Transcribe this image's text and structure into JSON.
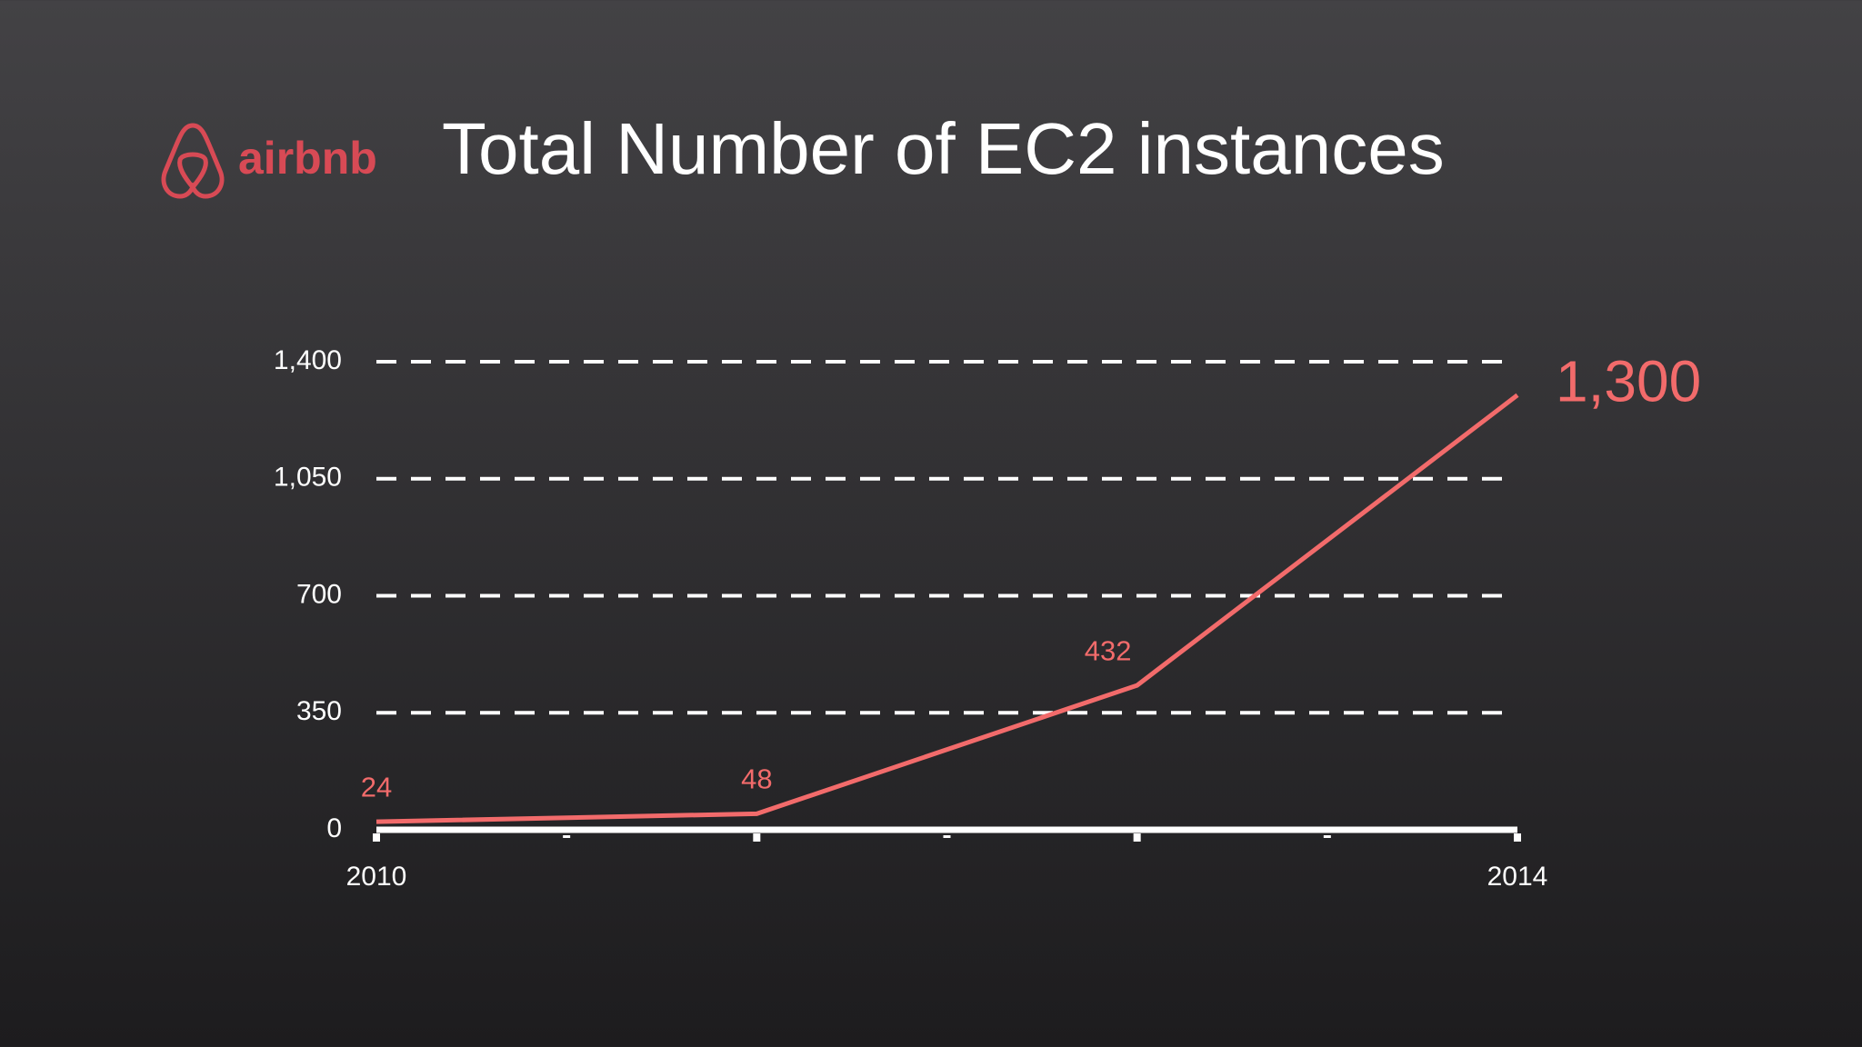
{
  "logo": "airbnb",
  "chart_data": {
    "type": "line",
    "title": "Total Number of EC2 instances",
    "categories": [
      "2010",
      null,
      null,
      "2014"
    ],
    "series": [
      {
        "color": "#f26b6b",
        "values": [
          24,
          48,
          432,
          1300
        ],
        "value_labels": [
          "24",
          "48",
          "432",
          "1,300"
        ]
      }
    ],
    "ylim": [
      0,
      1400
    ],
    "yticks": [
      0,
      350,
      700,
      {
        "value": 1050,
        "label": "1,050"
      },
      {
        "value": 1400,
        "label": "1,400"
      }
    ],
    "grid": true
  }
}
